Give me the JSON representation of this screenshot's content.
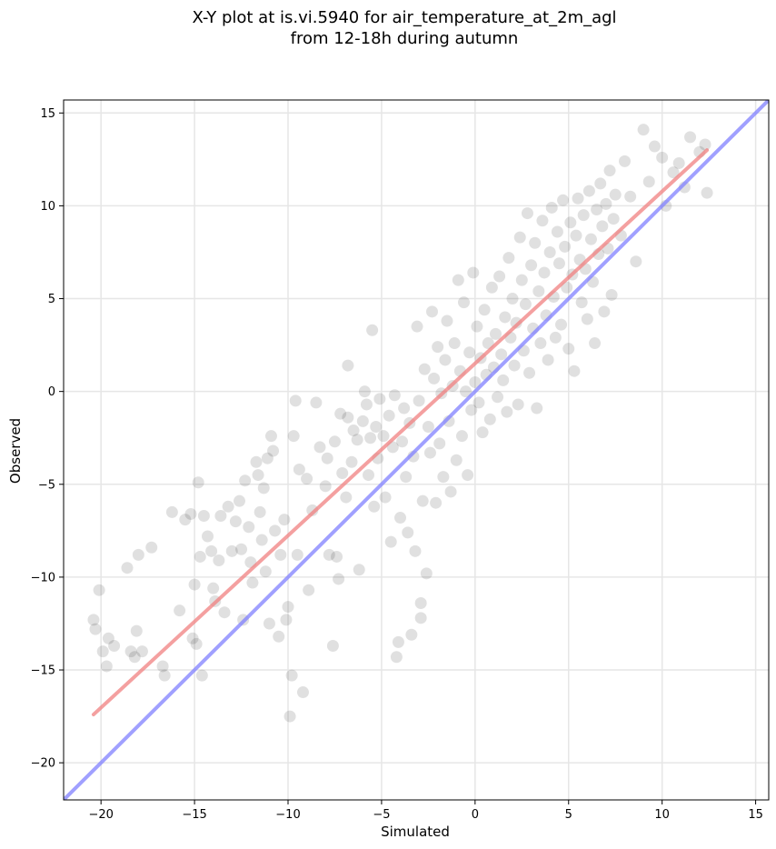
{
  "chart_data": {
    "type": "scatter",
    "title_lines": [
      "X-Y plot at is.vi.5940 for air_temperature_at_2m_agl",
      "from 12-18h during autumn"
    ],
    "xlabel": "Simulated",
    "ylabel": "Observed",
    "xlim": [
      -22,
      15.7
    ],
    "ylim": [
      -22,
      15.7
    ],
    "grid": true,
    "x_ticks": [
      -20,
      -15,
      -10,
      -5,
      0,
      5,
      10,
      15
    ],
    "y_ticks": [
      -20,
      -15,
      -10,
      -5,
      0,
      5,
      10,
      15
    ],
    "x_tick_labels": [
      "−20",
      "−15",
      "−10",
      "−5",
      "0",
      "5",
      "10",
      "15"
    ],
    "y_tick_labels": [
      "−20",
      "−15",
      "−10",
      "−5",
      "0",
      "5",
      "10",
      "15"
    ],
    "point_color": "#000000",
    "point_alpha": 0.12,
    "regression_line": {
      "color": "#f08080",
      "alpha": 0.75,
      "points": [
        [
          -20.4,
          -17.4
        ],
        [
          12.4,
          13.0
        ]
      ]
    },
    "identity_line": {
      "color": "#8080ff",
      "alpha": 0.75,
      "points": [
        [
          -22,
          -22
        ],
        [
          15.7,
          15.7
        ]
      ]
    },
    "points": [
      [
        -20.4,
        -12.3
      ],
      [
        -20.3,
        -12.8
      ],
      [
        -20.1,
        -10.7
      ],
      [
        -19.9,
        -14.0
      ],
      [
        -19.6,
        -13.3
      ],
      [
        -19.3,
        -13.7
      ],
      [
        -19.7,
        -14.8
      ],
      [
        -18.6,
        -9.5
      ],
      [
        -18.4,
        -14.0
      ],
      [
        -18.0,
        -8.8
      ],
      [
        -18.1,
        -12.9
      ],
      [
        -17.8,
        -14.0
      ],
      [
        -17.3,
        -8.4
      ],
      [
        -18.2,
        -14.3
      ],
      [
        -16.7,
        -14.8
      ],
      [
        -16.6,
        -15.3
      ],
      [
        -16.2,
        -6.5
      ],
      [
        -15.8,
        -11.8
      ],
      [
        -15.5,
        -6.9
      ],
      [
        -15.2,
        -6.6
      ],
      [
        -15.0,
        -10.4
      ],
      [
        -15.1,
        -13.3
      ],
      [
        -14.9,
        -13.6
      ],
      [
        -14.8,
        -4.9
      ],
      [
        -14.7,
        -8.9
      ],
      [
        -14.6,
        -15.3
      ],
      [
        -14.5,
        -6.7
      ],
      [
        -14.3,
        -7.8
      ],
      [
        -14.1,
        -8.6
      ],
      [
        -14.0,
        -10.6
      ],
      [
        -13.9,
        -11.3
      ],
      [
        -13.7,
        -9.1
      ],
      [
        -13.6,
        -6.7
      ],
      [
        -13.4,
        -11.9
      ],
      [
        -13.2,
        -6.2
      ],
      [
        -13.0,
        -8.6
      ],
      [
        -12.8,
        -7.0
      ],
      [
        -12.6,
        -5.9
      ],
      [
        -12.5,
        -8.5
      ],
      [
        -12.4,
        -12.3
      ],
      [
        -12.3,
        -4.8
      ],
      [
        -12.1,
        -7.3
      ],
      [
        -12.0,
        -9.2
      ],
      [
        -11.9,
        -10.3
      ],
      [
        -11.7,
        -3.8
      ],
      [
        -11.6,
        -4.5
      ],
      [
        -11.5,
        -6.5
      ],
      [
        -11.4,
        -8.0
      ],
      [
        -11.3,
        -5.2
      ],
      [
        -11.2,
        -9.7
      ],
      [
        -11.1,
        -3.6
      ],
      [
        -11.0,
        -12.5
      ],
      [
        -10.9,
        -2.4
      ],
      [
        -10.8,
        -3.2
      ],
      [
        -10.7,
        -7.5
      ],
      [
        -10.5,
        -13.2
      ],
      [
        -10.4,
        -8.8
      ],
      [
        -10.2,
        -6.9
      ],
      [
        -10.1,
        -12.3
      ],
      [
        -10.0,
        -11.6
      ],
      [
        -9.9,
        -17.5
      ],
      [
        -9.8,
        -15.3
      ],
      [
        -9.7,
        -2.4
      ],
      [
        -9.6,
        -0.5
      ],
      [
        -9.5,
        -8.8
      ],
      [
        -9.4,
        -4.2
      ],
      [
        -9.2,
        -16.2
      ],
      [
        -9.0,
        -4.7
      ],
      [
        -8.9,
        -10.7
      ],
      [
        -8.7,
        -6.4
      ],
      [
        -8.5,
        -0.6
      ],
      [
        -8.3,
        -3.0
      ],
      [
        -8.0,
        -5.1
      ],
      [
        -7.9,
        -3.6
      ],
      [
        -7.8,
        -8.8
      ],
      [
        -7.6,
        -13.7
      ],
      [
        -7.5,
        -2.7
      ],
      [
        -7.4,
        -8.9
      ],
      [
        -7.3,
        -10.1
      ],
      [
        -7.2,
        -1.2
      ],
      [
        -7.1,
        -4.4
      ],
      [
        -6.9,
        -5.7
      ],
      [
        -6.8,
        -1.4
      ],
      [
        -6.8,
        1.4
      ],
      [
        -6.6,
        -3.8
      ],
      [
        -6.5,
        -2.1
      ],
      [
        -6.3,
        -2.6
      ],
      [
        -6.2,
        -9.6
      ],
      [
        -6.0,
        -1.6
      ],
      [
        -5.9,
        0.0
      ],
      [
        -5.8,
        -0.7
      ],
      [
        -5.7,
        -4.5
      ],
      [
        -5.6,
        -2.5
      ],
      [
        -5.5,
        3.3
      ],
      [
        -5.4,
        -6.2
      ],
      [
        -5.3,
        -1.9
      ],
      [
        -5.2,
        -3.6
      ],
      [
        -5.1,
        -0.4
      ],
      [
        -4.9,
        -2.4
      ],
      [
        -4.8,
        -5.7
      ],
      [
        -4.6,
        -1.3
      ],
      [
        -4.5,
        -8.1
      ],
      [
        -4.4,
        -3.0
      ],
      [
        -4.3,
        -0.2
      ],
      [
        -4.2,
        -14.3
      ],
      [
        -4.1,
        -13.5
      ],
      [
        -4.0,
        -6.8
      ],
      [
        -3.9,
        -2.7
      ],
      [
        -3.8,
        -0.9
      ],
      [
        -3.7,
        -4.6
      ],
      [
        -3.6,
        -7.6
      ],
      [
        -3.5,
        -1.7
      ],
      [
        -3.4,
        -13.1
      ],
      [
        -3.3,
        -3.5
      ],
      [
        -3.2,
        -8.6
      ],
      [
        -3.1,
        3.5
      ],
      [
        -3.0,
        -0.5
      ],
      [
        -2.9,
        -11.4
      ],
      [
        -2.9,
        -12.2
      ],
      [
        -2.8,
        -5.9
      ],
      [
        -2.7,
        1.2
      ],
      [
        -2.6,
        -9.8
      ],
      [
        -2.5,
        -1.9
      ],
      [
        -2.4,
        -3.3
      ],
      [
        -2.3,
        4.3
      ],
      [
        -2.2,
        0.7
      ],
      [
        -2.1,
        -6.0
      ],
      [
        -2.0,
        2.4
      ],
      [
        -1.9,
        -2.8
      ],
      [
        -1.8,
        -0.1
      ],
      [
        -1.7,
        -4.6
      ],
      [
        -1.6,
        1.7
      ],
      [
        -1.5,
        3.8
      ],
      [
        -1.4,
        -1.6
      ],
      [
        -1.3,
        -5.4
      ],
      [
        -1.2,
        0.3
      ],
      [
        -1.1,
        2.6
      ],
      [
        -1.0,
        -3.7
      ],
      [
        -0.9,
        6.0
      ],
      [
        -0.8,
        1.1
      ],
      [
        -0.7,
        -2.4
      ],
      [
        -0.6,
        4.8
      ],
      [
        -0.5,
        0.0
      ],
      [
        -0.4,
        -4.5
      ],
      [
        -0.3,
        2.1
      ],
      [
        -0.2,
        -1.0
      ],
      [
        -0.1,
        6.4
      ],
      [
        0.0,
        0.5
      ],
      [
        0.1,
        3.5
      ],
      [
        0.2,
        -0.6
      ],
      [
        0.3,
        1.8
      ],
      [
        0.4,
        -2.2
      ],
      [
        0.5,
        4.4
      ],
      [
        0.6,
        0.9
      ],
      [
        0.7,
        2.6
      ],
      [
        0.8,
        -1.5
      ],
      [
        0.9,
        5.6
      ],
      [
        1.0,
        1.3
      ],
      [
        1.1,
        3.1
      ],
      [
        1.2,
        -0.3
      ],
      [
        1.3,
        6.2
      ],
      [
        1.4,
        2.0
      ],
      [
        1.5,
        0.6
      ],
      [
        1.6,
        4.0
      ],
      [
        1.7,
        -1.1
      ],
      [
        1.8,
        7.2
      ],
      [
        1.9,
        2.9
      ],
      [
        2.0,
        5.0
      ],
      [
        2.1,
        1.4
      ],
      [
        2.2,
        3.7
      ],
      [
        2.3,
        -0.7
      ],
      [
        2.4,
        8.3
      ],
      [
        2.5,
        6.0
      ],
      [
        2.6,
        2.2
      ],
      [
        2.7,
        4.7
      ],
      [
        2.8,
        9.6
      ],
      [
        2.9,
        1.0
      ],
      [
        3.0,
        6.8
      ],
      [
        3.1,
        3.4
      ],
      [
        3.2,
        8.0
      ],
      [
        3.3,
        -0.9
      ],
      [
        3.4,
        5.4
      ],
      [
        3.5,
        2.6
      ],
      [
        3.6,
        9.2
      ],
      [
        3.7,
        6.4
      ],
      [
        3.8,
        4.1
      ],
      [
        3.9,
        1.7
      ],
      [
        4.0,
        7.5
      ],
      [
        4.1,
        9.9
      ],
      [
        4.2,
        5.1
      ],
      [
        4.3,
        2.9
      ],
      [
        4.4,
        8.6
      ],
      [
        4.5,
        6.9
      ],
      [
        4.6,
        3.6
      ],
      [
        4.7,
        10.3
      ],
      [
        4.8,
        7.8
      ],
      [
        4.9,
        5.6
      ],
      [
        5.0,
        2.3
      ],
      [
        5.1,
        9.1
      ],
      [
        5.2,
        6.3
      ],
      [
        5.3,
        1.1
      ],
      [
        5.4,
        8.4
      ],
      [
        5.5,
        10.4
      ],
      [
        5.6,
        7.1
      ],
      [
        5.7,
        4.8
      ],
      [
        5.8,
        9.5
      ],
      [
        5.9,
        6.6
      ],
      [
        6.0,
        3.9
      ],
      [
        6.1,
        10.8
      ],
      [
        6.2,
        8.2
      ],
      [
        6.3,
        5.9
      ],
      [
        6.4,
        2.6
      ],
      [
        6.5,
        9.8
      ],
      [
        6.6,
        7.4
      ],
      [
        6.7,
        11.2
      ],
      [
        6.8,
        8.9
      ],
      [
        6.9,
        4.3
      ],
      [
        7.0,
        10.1
      ],
      [
        7.1,
        7.7
      ],
      [
        7.2,
        11.9
      ],
      [
        7.3,
        5.2
      ],
      [
        7.4,
        9.3
      ],
      [
        7.5,
        10.6
      ],
      [
        7.8,
        8.4
      ],
      [
        8.0,
        12.4
      ],
      [
        8.3,
        10.5
      ],
      [
        8.6,
        7.0
      ],
      [
        9.0,
        14.1
      ],
      [
        9.3,
        11.3
      ],
      [
        9.6,
        13.2
      ],
      [
        10.0,
        12.6
      ],
      [
        10.2,
        10.0
      ],
      [
        10.6,
        11.8
      ],
      [
        10.9,
        12.3
      ],
      [
        11.2,
        11.0
      ],
      [
        11.5,
        13.7
      ],
      [
        12.0,
        12.9
      ],
      [
        12.3,
        13.3
      ],
      [
        12.4,
        10.7
      ]
    ]
  }
}
